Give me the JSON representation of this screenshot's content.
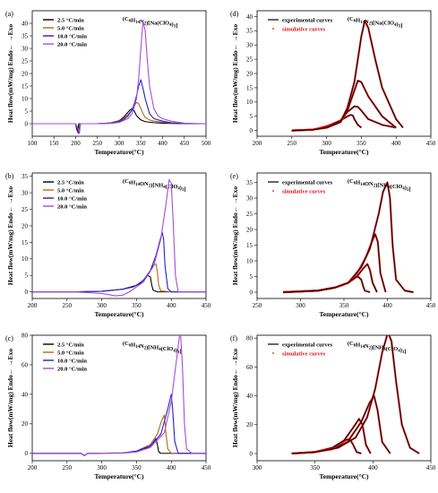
{
  "colors": {
    "r2_5": "#000000",
    "r5": "#b5651d",
    "r10": "#1f1fd1",
    "r20": "#a64dd6",
    "experimental": "#000000",
    "simulative": "#e01010"
  },
  "chart_data": [
    {
      "panel": "(a)",
      "type": "line",
      "title": "(C6H14N2)[Na(ClO4)3]",
      "xlabel": "Temperature(°C)",
      "ylabel": "Heat flow(mW/mg) Endo← →Exo",
      "xlim": [
        100,
        500
      ],
      "ylim": [
        -5,
        45
      ],
      "xticks": [
        100,
        150,
        200,
        250,
        300,
        350,
        400,
        450,
        500
      ],
      "yticks": [
        0,
        5,
        10,
        15,
        20,
        25,
        30,
        35,
        40
      ],
      "legend": "top-left",
      "series": [
        {
          "name": "2.5 °C/min",
          "color_key": "r2_5",
          "x": [
            100,
            200,
            202,
            205,
            207,
            250,
            280,
            300,
            310,
            320,
            325,
            330,
            335,
            340,
            350,
            360,
            380,
            400,
            420,
            450,
            500
          ],
          "y": [
            0,
            0,
            -2,
            -3.5,
            0,
            0,
            0.3,
            1.2,
            2.5,
            4.5,
            5.5,
            6,
            5,
            3.2,
            1.5,
            0.8,
            0.4,
            0.2,
            0.1,
            0,
            0
          ]
        },
        {
          "name": "5.0 °C/min",
          "color_key": "r5",
          "x": [
            100,
            200,
            204,
            207,
            209,
            250,
            280,
            300,
            310,
            320,
            330,
            335,
            340,
            345,
            350,
            355,
            360,
            370,
            380,
            400,
            420,
            450,
            500
          ],
          "y": [
            0,
            0,
            -2,
            -4,
            0,
            0,
            0.3,
            1,
            2,
            3.5,
            5.5,
            7,
            8.5,
            8,
            6,
            4,
            2.5,
            1.5,
            1,
            0.6,
            0.3,
            0,
            0
          ]
        },
        {
          "name": "10.0 °C/min",
          "color_key": "r10",
          "x": [
            100,
            200,
            205,
            208,
            210,
            250,
            280,
            300,
            310,
            320,
            330,
            335,
            340,
            345,
            350,
            355,
            360,
            370,
            380,
            400,
            420,
            450,
            500
          ],
          "y": [
            0,
            0,
            -2,
            -3.8,
            0,
            0,
            0.2,
            0.8,
            1.6,
            3,
            5.5,
            8,
            11,
            15,
            17.5,
            14,
            10,
            4,
            2,
            1,
            0.4,
            0,
            0
          ]
        },
        {
          "name": "20.0 °C/min",
          "color_key": "r20",
          "x": [
            100,
            200,
            206,
            209,
            211,
            250,
            280,
            300,
            320,
            330,
            340,
            345,
            350,
            355,
            360,
            365,
            370,
            380,
            390,
            400,
            410,
            420,
            450,
            500
          ],
          "y": [
            0,
            0,
            -2,
            -3.5,
            0,
            0,
            0.1,
            0.5,
            2,
            4,
            10,
            18,
            30,
            41,
            37,
            25,
            15,
            6,
            3,
            2,
            1.5,
            1,
            0.2,
            0
          ]
        }
      ]
    },
    {
      "panel": "(b)",
      "type": "line",
      "title": "(C6H14ON2)[NH4(ClO4)3]",
      "xlabel": "Temperature(°C)",
      "ylabel": "Heat flow(mW/mg) Endo← →Exo",
      "xlim": [
        200,
        450
      ],
      "ylim": [
        -2,
        36
      ],
      "xticks": [
        200,
        250,
        300,
        350,
        400,
        450
      ],
      "yticks": [
        0,
        5,
        10,
        15,
        20,
        25,
        30,
        35
      ],
      "legend": "top-left",
      "series": [
        {
          "name": "2.5 °C/min",
          "color_key": "r2_5",
          "x": [
            200,
            260,
            300,
            330,
            345,
            355,
            362,
            366,
            370,
            372,
            374,
            380,
            400,
            450
          ],
          "y": [
            0,
            0,
            0.2,
            0.8,
            1.5,
            2.5,
            4,
            5,
            4.5,
            2,
            0.5,
            0,
            0,
            0
          ]
        },
        {
          "name": "5.0 °C/min",
          "color_key": "r5",
          "x": [
            200,
            260,
            300,
            330,
            350,
            360,
            368,
            374,
            378,
            380,
            382,
            385,
            400,
            450
          ],
          "y": [
            0,
            0,
            0.2,
            0.8,
            2,
            3.5,
            5.5,
            8,
            8.5,
            6,
            2,
            0.3,
            0,
            0
          ]
        },
        {
          "name": "10.0 °C/min",
          "color_key": "r10",
          "x": [
            200,
            260,
            300,
            330,
            350,
            360,
            370,
            378,
            383,
            387,
            389,
            391,
            395,
            400,
            450
          ],
          "y": [
            0,
            0,
            0.2,
            0.8,
            2,
            3.5,
            6.5,
            11,
            15,
            18,
            16,
            8,
            1,
            0,
            0
          ]
        },
        {
          "name": "20.0 °C/min",
          "color_key": "r20",
          "x": [
            200,
            260,
            300,
            320,
            330,
            340,
            360,
            375,
            385,
            392,
            397,
            400,
            403,
            406,
            410,
            450
          ],
          "y": [
            0,
            0,
            -0.5,
            -1.2,
            -1,
            0,
            3,
            8,
            16,
            26,
            34,
            33,
            20,
            5,
            0,
            0
          ]
        }
      ]
    },
    {
      "panel": "(c)",
      "type": "line",
      "title": "(C6H14N2)[NH4(ClO4)3]",
      "xlabel": "Temperature(°C)",
      "ylabel": "Heat flow(mW/mg) Endo← →Exo",
      "xlim": [
        200,
        450
      ],
      "ylim": [
        -5,
        80
      ],
      "xticks": [
        200,
        250,
        300,
        350,
        400,
        450
      ],
      "yticks": [
        0,
        20,
        40,
        60,
        80
      ],
      "legend": "top-left",
      "series": [
        {
          "name": "2.5 °C/min",
          "color_key": "r2_5",
          "x": [
            200,
            270,
            275,
            280,
            330,
            350,
            360,
            370,
            375,
            378,
            380,
            382,
            385,
            400,
            450
          ],
          "y": [
            0,
            0,
            -1.5,
            0,
            0.2,
            1,
            2.5,
            5,
            8,
            10,
            6,
            1,
            0,
            0,
            0
          ]
        },
        {
          "name": "5.0 °C/min",
          "color_key": "r5",
          "x": [
            200,
            270,
            275,
            280,
            330,
            350,
            370,
            380,
            386,
            390,
            392,
            395,
            400,
            450
          ],
          "y": [
            0,
            0,
            -1.5,
            0,
            0.3,
            1.5,
            6,
            13,
            22,
            26,
            15,
            3,
            0,
            0
          ]
        },
        {
          "name": "10.0 °C/min",
          "color_key": "r10",
          "x": [
            200,
            270,
            275,
            280,
            330,
            350,
            370,
            385,
            395,
            400,
            402,
            405,
            410,
            450
          ],
          "y": [
            0,
            0,
            -1.5,
            0,
            0.3,
            1.5,
            5,
            13,
            30,
            40,
            30,
            8,
            0,
            0
          ]
        },
        {
          "name": "20.0 °C/min",
          "color_key": "r20",
          "x": [
            200,
            270,
            275,
            280,
            330,
            350,
            370,
            390,
            400,
            408,
            413,
            416,
            419,
            422,
            430,
            450
          ],
          "y": [
            0,
            0,
            -1.5,
            0,
            0.3,
            1,
            4,
            14,
            35,
            65,
            84,
            60,
            20,
            3,
            0,
            0
          ]
        }
      ]
    },
    {
      "panel": "(d)",
      "type": "line",
      "title": "(C6H14N2)[Na(ClO4)3]",
      "xlabel": "Temperature(°C)",
      "ylabel": "Heat flow(mW/mg) Endo← →Exo",
      "xlim": [
        200,
        450
      ],
      "ylim": [
        -2,
        42
      ],
      "xticks": [
        200,
        250,
        300,
        350,
        400,
        450
      ],
      "yticks": [
        0,
        5,
        10,
        15,
        20,
        25,
        30,
        35,
        40
      ],
      "legend": "top-left",
      "legend_entries": [
        "experimental curves",
        "simulative curves"
      ],
      "series": [
        {
          "x": [
            250,
            280,
            300,
            320,
            330,
            335,
            338,
            340,
            345,
            350
          ],
          "y": [
            0,
            0.3,
            1.5,
            3.5,
            5,
            5.5,
            5.2,
            4,
            2,
            1
          ]
        },
        {
          "x": [
            250,
            280,
            300,
            320,
            330,
            340,
            345,
            350,
            360,
            380,
            400
          ],
          "y": [
            0,
            0.3,
            1.2,
            3.5,
            6.5,
            8.5,
            8.3,
            7,
            4,
            2,
            1
          ]
        },
        {
          "x": [
            250,
            280,
            300,
            320,
            330,
            340,
            345,
            350,
            360,
            380,
            400
          ],
          "y": [
            0,
            0.3,
            1,
            3,
            7,
            14,
            17.5,
            17,
            12,
            5,
            1
          ]
        },
        {
          "x": [
            250,
            280,
            300,
            320,
            330,
            340,
            345,
            350,
            355,
            360,
            370,
            380,
            400,
            410
          ],
          "y": [
            0,
            0.3,
            1,
            3,
            8,
            17,
            25,
            33,
            38.5,
            36,
            25,
            15,
            4,
            1
          ]
        }
      ]
    },
    {
      "panel": "(e)",
      "type": "line",
      "title": "(C6H14ON2)[NH4(ClO4)3]",
      "xlabel": "Temperature(°C)",
      "ylabel": "Heat flow(mW/mg) Endo← →Exo",
      "xlim": [
        250,
        450
      ],
      "ylim": [
        -2,
        38
      ],
      "xticks": [
        250,
        300,
        350,
        400,
        450
      ],
      "yticks": [
        0,
        5,
        10,
        15,
        20,
        25,
        30,
        35
      ],
      "legend": "top-left",
      "legend_entries": [
        "experimental curves",
        "simulative curves"
      ],
      "series": [
        {
          "x": [
            280,
            320,
            340,
            355,
            362,
            366,
            370,
            372,
            374,
            380
          ],
          "y": [
            0,
            0.5,
            1.5,
            3,
            4.5,
            5,
            4,
            2,
            0.5,
            0
          ]
        },
        {
          "x": [
            280,
            320,
            340,
            355,
            365,
            372,
            377,
            380,
            383,
            388
          ],
          "y": [
            0,
            0.5,
            1.5,
            3,
            5,
            7.5,
            9,
            7,
            3,
            0
          ]
        },
        {
          "x": [
            280,
            320,
            340,
            355,
            365,
            375,
            382,
            386,
            389,
            392,
            398
          ],
          "y": [
            0,
            0.5,
            1.5,
            3,
            6,
            11,
            16,
            18.5,
            16,
            6,
            0
          ]
        },
        {
          "x": [
            280,
            320,
            340,
            355,
            370,
            380,
            390,
            395,
            400,
            403,
            406,
            410,
            420,
            430
          ],
          "y": [
            0,
            0.5,
            1.5,
            3,
            8,
            14,
            25,
            32,
            35,
            30,
            15,
            4,
            0.5,
            0
          ]
        }
      ]
    },
    {
      "panel": "(f)",
      "type": "line",
      "title": "(C6H14N2)[NH4(ClO4)3]",
      "xlabel": "Temperature(°C)",
      "ylabel": "Heat flow(mW/mg) Endo← →Exo",
      "xlim": [
        300,
        450
      ],
      "ylim": [
        -5,
        82
      ],
      "xticks": [
        300,
        350,
        400,
        450
      ],
      "yticks": [
        0,
        20,
        40,
        60,
        80
      ],
      "legend": "top-left",
      "legend_entries": [
        "experimental curves",
        "simulative curves"
      ],
      "series": [
        {
          "x": [
            330,
            350,
            365,
            372,
            377,
            380,
            383,
            386,
            390
          ],
          "y": [
            0,
            1,
            4,
            7,
            9.5,
            10,
            6,
            1,
            0
          ]
        },
        {
          "x": [
            330,
            350,
            365,
            375,
            383,
            388,
            391,
            394,
            398
          ],
          "y": [
            0,
            1,
            4,
            9,
            18,
            24,
            20,
            6,
            0
          ]
        },
        {
          "x": [
            330,
            350,
            365,
            378,
            390,
            397,
            401,
            404,
            408,
            415
          ],
          "y": [
            0,
            1,
            3,
            8,
            22,
            35,
            40,
            30,
            8,
            0
          ]
        },
        {
          "x": [
            330,
            350,
            370,
            385,
            395,
            402,
            408,
            413,
            416,
            420,
            425,
            432,
            440
          ],
          "y": [
            0,
            1,
            4,
            11,
            25,
            45,
            70,
            84,
            78,
            50,
            20,
            4,
            0
          ]
        }
      ]
    }
  ]
}
